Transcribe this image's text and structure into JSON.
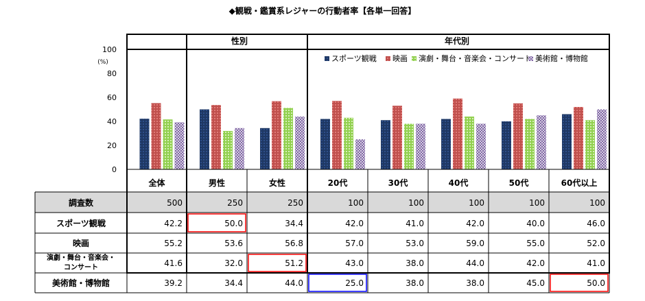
{
  "title": "◆観戦・鑑賞系レジャーの行動者率【各単一回答】",
  "group_labels": [
    "性別",
    "年代別"
  ],
  "row_header_sample": "調査数",
  "colors": {
    "スポーツ観戦": "#1f3864",
    "映画": "#c0504d",
    "演劇・舞台・音楽会・コンサート": "#92d050",
    "美術館・博物館": "#8064a2",
    "highlight_red": "#ff0000",
    "highlight_blue": "#0000ff",
    "header_fill": "#d9d9d9"
  },
  "chart_data": {
    "type": "bar",
    "title": "◆観戦・鑑賞系レジャーの行動者率【各単一回答】",
    "ylabel": "(%)",
    "ylim": [
      0,
      100
    ],
    "yticks": [
      0,
      20,
      40,
      60,
      80,
      100
    ],
    "legend_position": "top-right",
    "categories": [
      "全体",
      "男性",
      "女性",
      "20代",
      "30代",
      "40代",
      "50代",
      "60代以上"
    ],
    "sample_sizes": [
      "500",
      "250",
      "250",
      "100",
      "100",
      "100",
      "100",
      "100"
    ],
    "series": [
      {
        "name": "スポーツ観戦",
        "legend": "スポーツ観戦",
        "row_label": "スポーツ観戦",
        "values": [
          42.2,
          50.0,
          34.4,
          42.0,
          41.0,
          42.0,
          40.0,
          46.0
        ],
        "labels": [
          "42.2",
          "50.0",
          "34.4",
          "42.0",
          "41.0",
          "42.0",
          "40.0",
          "46.0"
        ]
      },
      {
        "name": "映画",
        "legend": "映画",
        "row_label": "映画",
        "values": [
          55.2,
          53.6,
          56.8,
          57.0,
          53.0,
          59.0,
          55.0,
          52.0
        ],
        "labels": [
          "55.2",
          "53.6",
          "56.8",
          "57.0",
          "53.0",
          "59.0",
          "55.0",
          "52.0"
        ]
      },
      {
        "name": "演劇・舞台・音楽会・コンサート",
        "legend": "演劇・舞台・音楽会・コンサート",
        "row_label_lines": [
          "演劇・舞台・音楽会・",
          "コンサート"
        ],
        "values": [
          41.6,
          32.0,
          51.2,
          43.0,
          38.0,
          44.0,
          42.0,
          41.0
        ],
        "labels": [
          "41.6",
          "32.0",
          "51.2",
          "43.0",
          "38.0",
          "44.0",
          "42.0",
          "41.0"
        ]
      },
      {
        "name": "美術館・博物館",
        "legend": "美術館・博物館",
        "row_label": "美術館・博物館",
        "values": [
          39.2,
          34.4,
          44.0,
          25.0,
          38.0,
          38.0,
          45.0,
          50.0
        ],
        "labels": [
          "39.2",
          "34.4",
          "44.0",
          "25.0",
          "38.0",
          "38.0",
          "45.0",
          "50.0"
        ]
      }
    ],
    "highlights": [
      {
        "series": 0,
        "category": 1,
        "color": "red"
      },
      {
        "series": 2,
        "category": 2,
        "color": "red"
      },
      {
        "series": 3,
        "category": 3,
        "color": "blue"
      },
      {
        "series": 3,
        "category": 7,
        "color": "red"
      }
    ]
  }
}
